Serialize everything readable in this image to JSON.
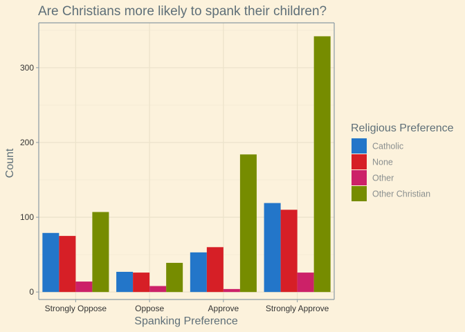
{
  "colors": {
    "background": "#fcf2dc",
    "grid": "#efe6cf",
    "axis": "#8a9aa3",
    "title": "#5e6f78"
  },
  "chart_data": {
    "type": "bar",
    "title": "Are Christians more likely to spank their children?",
    "xlabel": "Spanking Preference",
    "ylabel": "Count",
    "categories": [
      "Strongly Oppose",
      "Oppose",
      "Approve",
      "Strongly Approve"
    ],
    "ylim": [
      -10,
      360
    ],
    "yticks": [
      0,
      100,
      200,
      300
    ],
    "grid": true,
    "legend": {
      "title": "Religious Preference",
      "position": "right"
    },
    "series": [
      {
        "name": "Catholic",
        "color": "#2376c9",
        "values": [
          79,
          27,
          53,
          119
        ]
      },
      {
        "name": "None",
        "color": "#d61f26",
        "values": [
          75,
          26,
          60,
          110
        ]
      },
      {
        "name": "Other",
        "color": "#cc2168",
        "values": [
          14,
          8,
          4,
          26
        ]
      },
      {
        "name": "Other Christian",
        "color": "#768c00",
        "values": [
          107,
          39,
          184,
          342
        ]
      }
    ]
  }
}
